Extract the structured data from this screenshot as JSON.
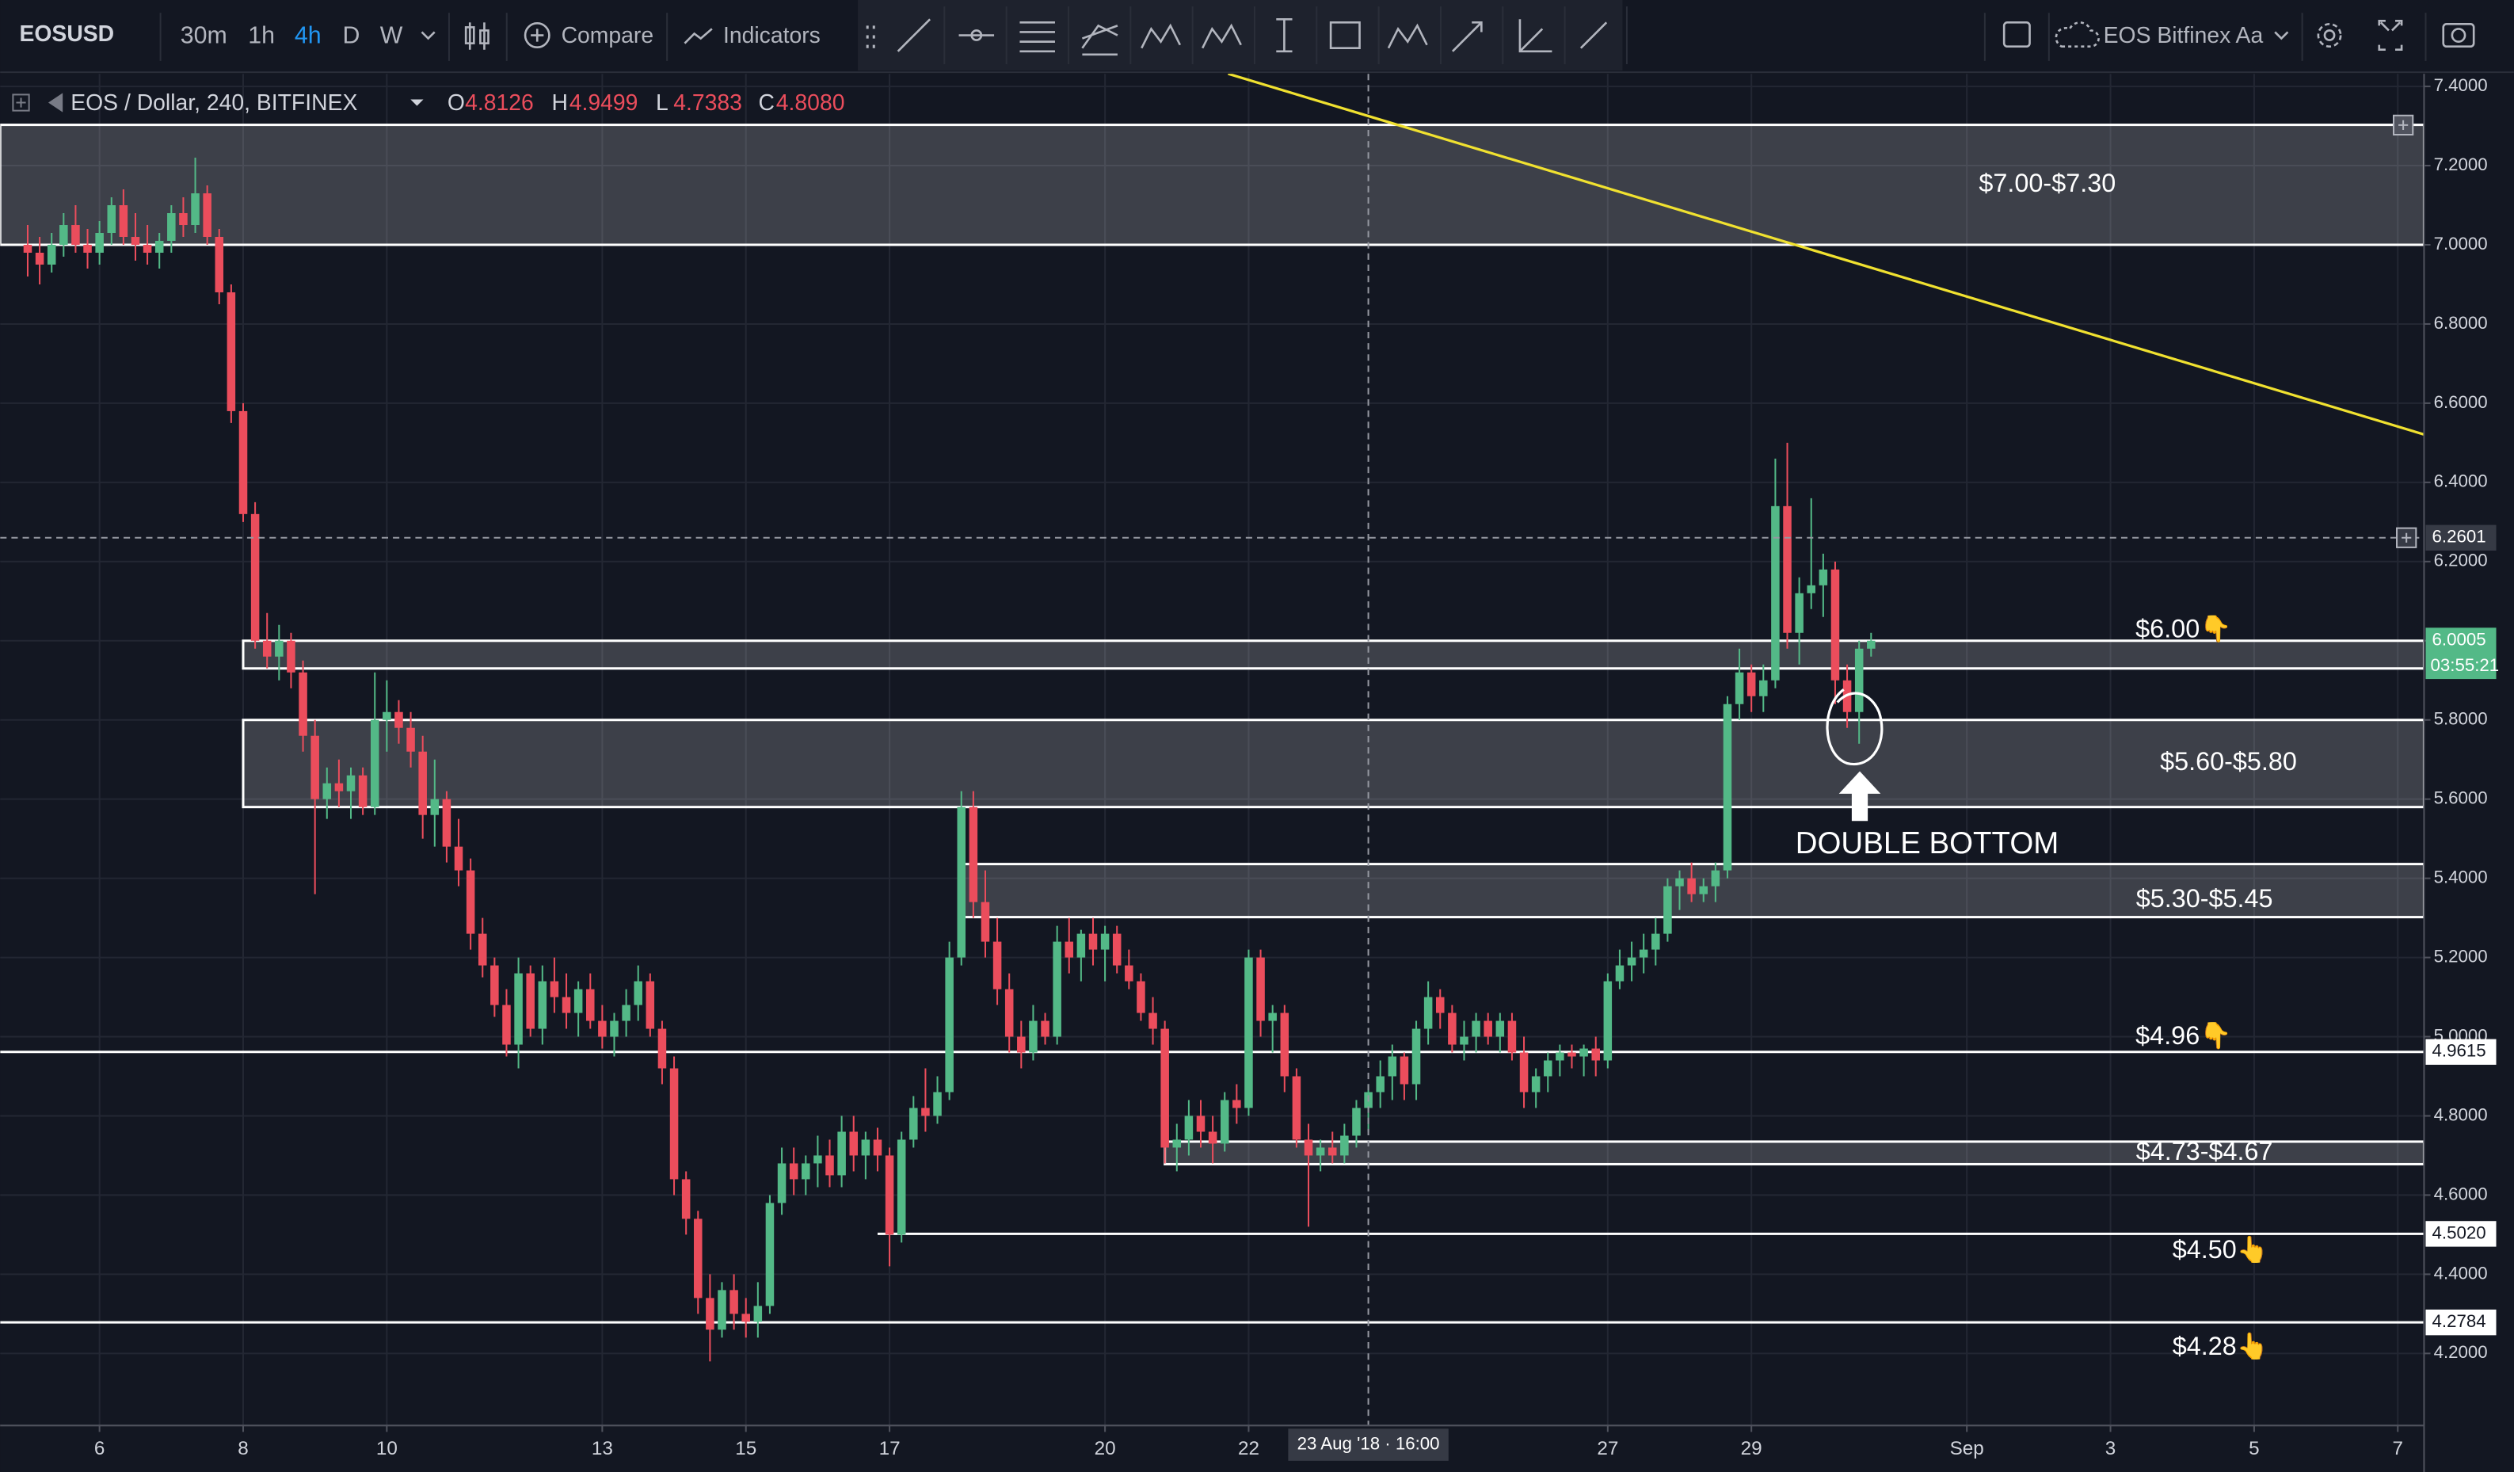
{
  "toolbar": {
    "symbol": "EOSUSD",
    "intervals": [
      "30m",
      "1h",
      "4h",
      "D",
      "W"
    ],
    "active_interval": 2,
    "compare": "Compare",
    "indicators": "Indicators",
    "layout": "EOS Bitfinex Aa"
  },
  "legend": {
    "title": "EOS / Dollar, 240, BITFINEX",
    "value_color": "#eb4d5c",
    "fields": [
      {
        "key": "O",
        "value": "4.8126"
      },
      {
        "key": "H",
        "value": "4.9499"
      },
      {
        "key": "L",
        "value": "4.7383"
      },
      {
        "key": "C",
        "value": "4.8080"
      }
    ]
  },
  "chart_data": {
    "type": "candlestick",
    "up_color": "#53b987",
    "down_color": "#eb4d5c",
    "grid": true,
    "xlim": [
      "2018-08-04T14:48",
      "2018-09-07T08:47"
    ],
    "xticks": [
      {
        "value": "2018-08-06T00:00",
        "label": "6"
      },
      {
        "value": "2018-08-08T00:00",
        "label": "8"
      },
      {
        "value": "2018-08-10T00:00",
        "label": "10"
      },
      {
        "value": "2018-08-13T00:00",
        "label": "13"
      },
      {
        "value": "2018-08-15T00:00",
        "label": "15"
      },
      {
        "value": "2018-08-17T00:00",
        "label": "17"
      },
      {
        "value": "2018-08-20T00:00",
        "label": "20"
      },
      {
        "value": "2018-08-22T00:00",
        "label": "22"
      },
      {
        "value": "2018-08-27T00:00",
        "label": "27"
      },
      {
        "value": "2018-08-29T00:00",
        "label": "29"
      },
      {
        "value": "2018-09-01T00:00",
        "label": "Sep"
      },
      {
        "value": "2018-09-03T00:00",
        "label": "3"
      },
      {
        "value": "2018-09-05T00:00",
        "label": "5"
      },
      {
        "value": "2018-09-07T00:00",
        "label": "7"
      }
    ],
    "ylim": [
      4.018,
      7.432
    ],
    "yticks": [
      {
        "value": 7.4,
        "label": "7.4000"
      },
      {
        "value": 7.2,
        "label": "7.2000"
      },
      {
        "value": 7.0,
        "label": "7.0000"
      },
      {
        "value": 6.8,
        "label": "6.8000"
      },
      {
        "value": 6.6,
        "label": "6.6000"
      },
      {
        "value": 6.4,
        "label": "6.4000"
      },
      {
        "value": 6.2,
        "label": "6.2000"
      },
      {
        "value": 6.0,
        "label": "6.0000"
      },
      {
        "value": 5.8,
        "label": "5.8000"
      },
      {
        "value": 5.6,
        "label": "5.6000"
      },
      {
        "value": 5.4,
        "label": "5.4000"
      },
      {
        "value": 5.2,
        "label": "5.2000"
      },
      {
        "value": 5.0,
        "label": "5.0000"
      },
      {
        "value": 4.8,
        "label": "4.8000"
      },
      {
        "value": 4.6,
        "label": "4.6000"
      },
      {
        "value": 4.4,
        "label": "4.4000"
      },
      {
        "value": 4.2,
        "label": "4.2000"
      }
    ],
    "x": [
      "2018-08-05T00:00",
      "2018-08-05T04:00",
      "2018-08-05T08:00",
      "2018-08-05T12:00",
      "2018-08-05T16:00",
      "2018-08-05T20:00",
      "2018-08-06T00:00",
      "2018-08-06T04:00",
      "2018-08-06T08:00",
      "2018-08-06T12:00",
      "2018-08-06T16:00",
      "2018-08-06T20:00",
      "2018-08-07T00:00",
      "2018-08-07T04:00",
      "2018-08-07T08:00",
      "2018-08-07T12:00",
      "2018-08-07T16:00",
      "2018-08-07T20:00",
      "2018-08-08T00:00",
      "2018-08-08T04:00",
      "2018-08-08T08:00",
      "2018-08-08T12:00",
      "2018-08-08T16:00",
      "2018-08-08T20:00",
      "2018-08-09T00:00",
      "2018-08-09T04:00",
      "2018-08-09T08:00",
      "2018-08-09T12:00",
      "2018-08-09T16:00",
      "2018-08-09T20:00",
      "2018-08-10T00:00",
      "2018-08-10T04:00",
      "2018-08-10T08:00",
      "2018-08-10T12:00",
      "2018-08-10T16:00",
      "2018-08-10T20:00",
      "2018-08-11T00:00",
      "2018-08-11T04:00",
      "2018-08-11T08:00",
      "2018-08-11T12:00",
      "2018-08-11T16:00",
      "2018-08-11T20:00",
      "2018-08-12T00:00",
      "2018-08-12T04:00",
      "2018-08-12T08:00",
      "2018-08-12T12:00",
      "2018-08-12T16:00",
      "2018-08-12T20:00",
      "2018-08-13T00:00",
      "2018-08-13T04:00",
      "2018-08-13T08:00",
      "2018-08-13T12:00",
      "2018-08-13T16:00",
      "2018-08-13T20:00",
      "2018-08-14T00:00",
      "2018-08-14T04:00",
      "2018-08-14T08:00",
      "2018-08-14T12:00",
      "2018-08-14T16:00",
      "2018-08-14T20:00",
      "2018-08-15T00:00",
      "2018-08-15T04:00",
      "2018-08-15T08:00",
      "2018-08-15T12:00",
      "2018-08-15T16:00",
      "2018-08-15T20:00",
      "2018-08-16T00:00",
      "2018-08-16T04:00",
      "2018-08-16T08:00",
      "2018-08-16T12:00",
      "2018-08-16T16:00",
      "2018-08-16T20:00",
      "2018-08-17T00:00",
      "2018-08-17T04:00",
      "2018-08-17T08:00",
      "2018-08-17T12:00",
      "2018-08-17T16:00",
      "2018-08-17T20:00",
      "2018-08-18T00:00",
      "2018-08-18T04:00",
      "2018-08-18T08:00",
      "2018-08-18T12:00",
      "2018-08-18T16:00",
      "2018-08-18T20:00",
      "2018-08-19T00:00",
      "2018-08-19T04:00",
      "2018-08-19T08:00",
      "2018-08-19T12:00",
      "2018-08-19T16:00",
      "2018-08-19T20:00",
      "2018-08-20T00:00",
      "2018-08-20T04:00",
      "2018-08-20T08:00",
      "2018-08-20T12:00",
      "2018-08-20T16:00",
      "2018-08-20T20:00",
      "2018-08-21T00:00",
      "2018-08-21T04:00",
      "2018-08-21T08:00",
      "2018-08-21T12:00",
      "2018-08-21T16:00",
      "2018-08-21T20:00",
      "2018-08-22T00:00",
      "2018-08-22T04:00",
      "2018-08-22T08:00",
      "2018-08-22T12:00",
      "2018-08-22T16:00",
      "2018-08-22T20:00",
      "2018-08-23T00:00",
      "2018-08-23T04:00",
      "2018-08-23T08:00",
      "2018-08-23T12:00",
      "2018-08-23T16:00",
      "2018-08-23T20:00",
      "2018-08-24T00:00",
      "2018-08-24T04:00",
      "2018-08-24T08:00",
      "2018-08-24T12:00",
      "2018-08-24T16:00",
      "2018-08-24T20:00",
      "2018-08-25T00:00",
      "2018-08-25T04:00",
      "2018-08-25T08:00",
      "2018-08-25T12:00",
      "2018-08-25T16:00",
      "2018-08-25T20:00",
      "2018-08-26T00:00",
      "2018-08-26T04:00",
      "2018-08-26T08:00",
      "2018-08-26T12:00",
      "2018-08-26T16:00",
      "2018-08-26T20:00",
      "2018-08-27T00:00",
      "2018-08-27T04:00",
      "2018-08-27T08:00",
      "2018-08-27T12:00",
      "2018-08-27T16:00",
      "2018-08-27T20:00",
      "2018-08-28T00:00",
      "2018-08-28T04:00",
      "2018-08-28T08:00",
      "2018-08-28T12:00",
      "2018-08-28T16:00",
      "2018-08-28T20:00",
      "2018-08-29T00:00",
      "2018-08-29T04:00",
      "2018-08-29T08:00",
      "2018-08-29T12:00",
      "2018-08-29T16:00",
      "2018-08-29T20:00",
      "2018-08-30T00:00",
      "2018-08-30T04:00",
      "2018-08-30T08:00",
      "2018-08-30T12:00",
      "2018-08-30T16:00"
    ],
    "ohlc": [
      [
        7.0,
        7.05,
        6.92,
        6.98
      ],
      [
        6.98,
        7.02,
        6.9,
        6.95
      ],
      [
        6.95,
        7.03,
        6.93,
        7.0
      ],
      [
        7.0,
        7.08,
        6.97,
        7.05
      ],
      [
        7.05,
        7.1,
        6.98,
        7.0
      ],
      [
        7.0,
        7.04,
        6.94,
        6.98
      ],
      [
        6.98,
        7.06,
        6.95,
        7.03
      ],
      [
        7.03,
        7.12,
        7.0,
        7.1
      ],
      [
        7.1,
        7.14,
        7.0,
        7.02
      ],
      [
        7.02,
        7.08,
        6.96,
        7.0
      ],
      [
        7.0,
        7.05,
        6.95,
        6.98
      ],
      [
        6.98,
        7.03,
        6.94,
        7.01
      ],
      [
        7.01,
        7.1,
        6.98,
        7.08
      ],
      [
        7.08,
        7.12,
        7.02,
        7.05
      ],
      [
        7.05,
        7.22,
        7.03,
        7.13
      ],
      [
        7.13,
        7.15,
        7.0,
        7.02
      ],
      [
        7.02,
        7.04,
        6.85,
        6.88
      ],
      [
        6.88,
        6.9,
        6.55,
        6.58
      ],
      [
        6.58,
        6.6,
        6.3,
        6.32
      ],
      [
        6.32,
        6.35,
        5.98,
        6.0
      ],
      [
        6.0,
        6.07,
        5.93,
        5.96
      ],
      [
        5.96,
        6.04,
        5.9,
        6.0
      ],
      [
        6.0,
        6.02,
        5.88,
        5.92
      ],
      [
        5.92,
        5.95,
        5.72,
        5.76
      ],
      [
        5.76,
        5.8,
        5.36,
        5.6
      ],
      [
        5.6,
        5.68,
        5.55,
        5.64
      ],
      [
        5.64,
        5.7,
        5.58,
        5.62
      ],
      [
        5.62,
        5.68,
        5.55,
        5.66
      ],
      [
        5.66,
        5.68,
        5.56,
        5.58
      ],
      [
        5.58,
        5.92,
        5.56,
        5.8
      ],
      [
        5.8,
        5.9,
        5.72,
        5.82
      ],
      [
        5.82,
        5.85,
        5.74,
        5.78
      ],
      [
        5.78,
        5.82,
        5.68,
        5.72
      ],
      [
        5.72,
        5.76,
        5.5,
        5.56
      ],
      [
        5.56,
        5.7,
        5.48,
        5.6
      ],
      [
        5.6,
        5.62,
        5.44,
        5.48
      ],
      [
        5.48,
        5.55,
        5.38,
        5.42
      ],
      [
        5.42,
        5.45,
        5.22,
        5.26
      ],
      [
        5.26,
        5.3,
        5.15,
        5.18
      ],
      [
        5.18,
        5.2,
        5.05,
        5.08
      ],
      [
        5.08,
        5.12,
        4.95,
        4.98
      ],
      [
        4.98,
        5.2,
        4.92,
        5.16
      ],
      [
        5.16,
        5.18,
        5.0,
        5.02
      ],
      [
        5.02,
        5.18,
        4.98,
        5.14
      ],
      [
        5.14,
        5.2,
        5.06,
        5.1
      ],
      [
        5.1,
        5.16,
        5.02,
        5.06
      ],
      [
        5.06,
        5.14,
        5.0,
        5.12
      ],
      [
        5.12,
        5.16,
        5.02,
        5.04
      ],
      [
        5.04,
        5.08,
        4.97,
        5.0
      ],
      [
        5.0,
        5.06,
        4.95,
        5.04
      ],
      [
        5.04,
        5.12,
        5.0,
        5.08
      ],
      [
        5.08,
        5.18,
        5.04,
        5.14
      ],
      [
        5.14,
        5.16,
        5.0,
        5.02
      ],
      [
        5.02,
        5.04,
        4.88,
        4.92
      ],
      [
        4.92,
        4.95,
        4.6,
        4.64
      ],
      [
        4.64,
        4.66,
        4.5,
        4.54
      ],
      [
        4.54,
        4.56,
        4.3,
        4.34
      ],
      [
        4.34,
        4.4,
        4.18,
        4.26
      ],
      [
        4.26,
        4.38,
        4.24,
        4.36
      ],
      [
        4.36,
        4.4,
        4.26,
        4.3
      ],
      [
        4.3,
        4.34,
        4.24,
        4.28
      ],
      [
        4.28,
        4.38,
        4.24,
        4.32
      ],
      [
        4.32,
        4.6,
        4.3,
        4.58
      ],
      [
        4.58,
        4.72,
        4.55,
        4.68
      ],
      [
        4.68,
        4.72,
        4.6,
        4.64
      ],
      [
        4.64,
        4.7,
        4.6,
        4.68
      ],
      [
        4.68,
        4.75,
        4.62,
        4.7
      ],
      [
        4.7,
        4.74,
        4.62,
        4.65
      ],
      [
        4.65,
        4.8,
        4.62,
        4.76
      ],
      [
        4.76,
        4.8,
        4.66,
        4.7
      ],
      [
        4.7,
        4.76,
        4.64,
        4.74
      ],
      [
        4.74,
        4.77,
        4.66,
        4.7
      ],
      [
        4.7,
        4.72,
        4.42,
        4.5
      ],
      [
        4.5,
        4.76,
        4.48,
        4.74
      ],
      [
        4.74,
        4.85,
        4.72,
        4.82
      ],
      [
        4.82,
        4.92,
        4.76,
        4.8
      ],
      [
        4.8,
        4.9,
        4.78,
        4.86
      ],
      [
        4.86,
        5.24,
        4.84,
        5.2
      ],
      [
        5.2,
        5.62,
        5.18,
        5.58
      ],
      [
        5.58,
        5.62,
        5.3,
        5.34
      ],
      [
        5.34,
        5.42,
        5.2,
        5.24
      ],
      [
        5.24,
        5.3,
        5.08,
        5.12
      ],
      [
        5.12,
        5.16,
        4.96,
        5.0
      ],
      [
        5.0,
        5.04,
        4.92,
        4.96
      ],
      [
        4.96,
        5.08,
        4.94,
        5.04
      ],
      [
        5.04,
        5.06,
        4.98,
        5.0
      ],
      [
        5.0,
        5.28,
        4.98,
        5.24
      ],
      [
        5.24,
        5.3,
        5.16,
        5.2
      ],
      [
        5.2,
        5.27,
        5.14,
        5.26
      ],
      [
        5.26,
        5.3,
        5.18,
        5.22
      ],
      [
        5.22,
        5.28,
        5.14,
        5.26
      ],
      [
        5.26,
        5.28,
        5.16,
        5.18
      ],
      [
        5.18,
        5.22,
        5.12,
        5.14
      ],
      [
        5.14,
        5.16,
        5.04,
        5.06
      ],
      [
        5.06,
        5.1,
        4.98,
        5.02
      ],
      [
        5.02,
        5.04,
        4.68,
        4.72
      ],
      [
        4.72,
        4.78,
        4.66,
        4.74
      ],
      [
        4.74,
        4.84,
        4.7,
        4.8
      ],
      [
        4.8,
        4.84,
        4.72,
        4.76
      ],
      [
        4.76,
        4.8,
        4.68,
        4.73
      ],
      [
        4.73,
        4.86,
        4.71,
        4.84
      ],
      [
        4.84,
        4.88,
        4.78,
        4.82
      ],
      [
        4.82,
        5.22,
        4.8,
        5.2
      ],
      [
        5.2,
        5.22,
        5.0,
        5.04
      ],
      [
        5.04,
        5.08,
        4.96,
        5.06
      ],
      [
        5.06,
        5.08,
        4.86,
        4.9
      ],
      [
        4.9,
        4.92,
        4.72,
        4.74
      ],
      [
        4.74,
        4.78,
        4.52,
        4.7
      ],
      [
        4.7,
        4.74,
        4.66,
        4.72
      ],
      [
        4.72,
        4.76,
        4.68,
        4.7
      ],
      [
        4.7,
        4.78,
        4.68,
        4.75
      ],
      [
        4.75,
        4.84,
        4.72,
        4.82
      ],
      [
        4.82,
        4.88,
        4.76,
        4.86
      ],
      [
        4.86,
        4.94,
        4.82,
        4.9
      ],
      [
        4.9,
        4.98,
        4.84,
        4.95
      ],
      [
        4.95,
        4.96,
        4.84,
        4.88
      ],
      [
        4.88,
        5.04,
        4.84,
        5.02
      ],
      [
        5.02,
        5.14,
        4.98,
        5.1
      ],
      [
        5.1,
        5.12,
        5.02,
        5.06
      ],
      [
        5.06,
        5.08,
        4.96,
        4.98
      ],
      [
        4.98,
        5.04,
        4.94,
        5.0
      ],
      [
        5.0,
        5.06,
        4.96,
        5.04
      ],
      [
        5.04,
        5.06,
        4.98,
        5.0
      ],
      [
        5.0,
        5.06,
        4.96,
        5.04
      ],
      [
        5.04,
        5.06,
        4.94,
        4.96
      ],
      [
        4.96,
        5.0,
        4.82,
        4.86
      ],
      [
        4.86,
        4.92,
        4.82,
        4.9
      ],
      [
        4.9,
        4.96,
        4.86,
        4.94
      ],
      [
        4.94,
        4.98,
        4.9,
        4.96
      ],
      [
        4.96,
        4.98,
        4.92,
        4.95
      ],
      [
        4.95,
        4.98,
        4.9,
        4.97
      ],
      [
        4.97,
        5.0,
        4.9,
        4.94
      ],
      [
        4.94,
        5.16,
        4.92,
        5.14
      ],
      [
        5.14,
        5.22,
        5.12,
        5.18
      ],
      [
        5.18,
        5.24,
        5.14,
        5.2
      ],
      [
        5.2,
        5.26,
        5.16,
        5.22
      ],
      [
        5.22,
        5.3,
        5.18,
        5.26
      ],
      [
        5.26,
        5.4,
        5.24,
        5.38
      ],
      [
        5.38,
        5.42,
        5.32,
        5.4
      ],
      [
        5.4,
        5.44,
        5.34,
        5.36
      ],
      [
        5.36,
        5.4,
        5.34,
        5.38
      ],
      [
        5.38,
        5.44,
        5.34,
        5.42
      ],
      [
        5.42,
        5.86,
        5.4,
        5.84
      ],
      [
        5.84,
        5.98,
        5.8,
        5.92
      ],
      [
        5.92,
        5.94,
        5.82,
        5.86
      ],
      [
        5.86,
        5.94,
        5.82,
        5.9
      ],
      [
        5.9,
        6.46,
        5.88,
        6.34
      ],
      [
        6.34,
        6.5,
        5.98,
        6.02
      ],
      [
        6.02,
        6.16,
        5.94,
        6.12
      ],
      [
        6.12,
        6.36,
        6.08,
        6.14
      ],
      [
        6.14,
        6.22,
        6.06,
        6.18
      ],
      [
        6.18,
        6.2,
        5.84,
        5.9
      ],
      [
        5.9,
        5.94,
        5.78,
        5.82
      ],
      [
        5.82,
        6.0,
        5.74,
        5.98
      ],
      [
        5.98,
        6.02,
        5.96,
        6.0
      ]
    ],
    "zones": [
      {
        "label": "$7.00-$7.30",
        "low": 7.0,
        "high": 7.303
      },
      {
        "label": "$6.00👇",
        "low": 5.93,
        "high": 6.0,
        "from": "2018-08-08T00:00"
      },
      {
        "label": "$5.60-$5.80",
        "low": 5.58,
        "high": 5.8,
        "from": "2018-08-08T00:00"
      },
      {
        "label": "$5.30-$5.45",
        "low": 5.302,
        "high": 5.436,
        "from": "2018-08-18T00:00"
      },
      {
        "label": "$4.73-$4.67",
        "low": 4.678,
        "high": 4.735,
        "from": "2018-08-20T20:00"
      }
    ],
    "lines": [
      {
        "label": "$4.96👇",
        "value": 4.9615
      },
      {
        "label": "$4.50👆",
        "value": {
          "value": 4.502,
          "label": "4.5020"
        },
        "from": "2018-08-16T20:00"
      },
      {
        "label": "$4.28👆",
        "value": 4.2784
      }
    ],
    "trendline": {
      "color": "#f0e130",
      "points": [
        {
          "x": "2018-08-21T17:08",
          "y": 7.432
        },
        {
          "x": "2018-09-07T08:47",
          "y": 6.521
        }
      ]
    },
    "crosshair": {
      "x": "2018-08-23T16:00",
      "x_label": "23 Aug '18 · 16:00",
      "y": 6.2601
    },
    "last_price": {
      "value": 6.0005,
      "countdown": "03:55:21",
      "color": "#53b987"
    },
    "annotation": {
      "label": "DOUBLE BOTTOM"
    }
  }
}
